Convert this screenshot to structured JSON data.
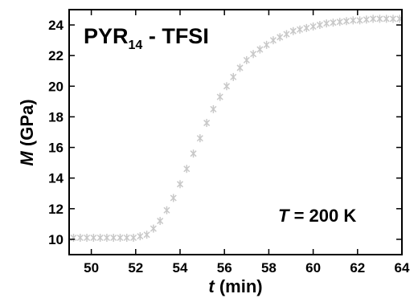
{
  "chart_data": {
    "type": "scatter",
    "title": "",
    "xlabel_var": "t",
    "xlabel_unit": " (min)",
    "ylabel_var": "M",
    "ylabel_unit": " (GPa)",
    "xlim": [
      49,
      64
    ],
    "ylim": [
      9,
      25
    ],
    "xticks": [
      50,
      52,
      54,
      56,
      58,
      60,
      62,
      64
    ],
    "yticks": [
      10,
      12,
      14,
      16,
      18,
      20,
      22,
      24
    ],
    "grid": false,
    "legend": "none",
    "marker_color": "#c8c8c8",
    "series": [
      {
        "x": [
          49.2,
          49.5,
          49.8,
          50.1,
          50.4,
          50.7,
          51.0,
          51.3,
          51.6,
          51.9,
          52.2,
          52.5,
          52.8,
          53.1,
          53.4,
          53.7,
          54.0,
          54.3,
          54.6,
          54.9,
          55.2,
          55.5,
          55.8,
          56.1,
          56.4,
          56.7,
          57.0,
          57.3,
          57.6,
          57.9,
          58.2,
          58.5,
          58.8,
          59.1,
          59.4,
          59.7,
          60.0,
          60.3,
          60.6,
          60.9,
          61.2,
          61.5,
          61.8,
          62.1,
          62.4,
          62.7,
          63.0,
          63.3,
          63.6,
          63.9
        ],
        "y": [
          10.1,
          10.1,
          10.1,
          10.1,
          10.1,
          10.1,
          10.1,
          10.1,
          10.1,
          10.1,
          10.2,
          10.3,
          10.7,
          11.2,
          11.9,
          12.7,
          13.6,
          14.6,
          15.6,
          16.6,
          17.6,
          18.5,
          19.3,
          20.0,
          20.6,
          21.2,
          21.7,
          22.1,
          22.4,
          22.7,
          23.0,
          23.2,
          23.4,
          23.6,
          23.7,
          23.8,
          23.9,
          24.0,
          24.1,
          24.15,
          24.2,
          24.25,
          24.3,
          24.3,
          24.35,
          24.4,
          24.4,
          24.4,
          24.4,
          24.4
        ]
      }
    ],
    "annotations": {
      "sample_main": "PYR",
      "sample_sub": "14",
      "sample_rest": " - TFSI",
      "temp_var": "T",
      "temp_rest": " = 200 K"
    }
  }
}
